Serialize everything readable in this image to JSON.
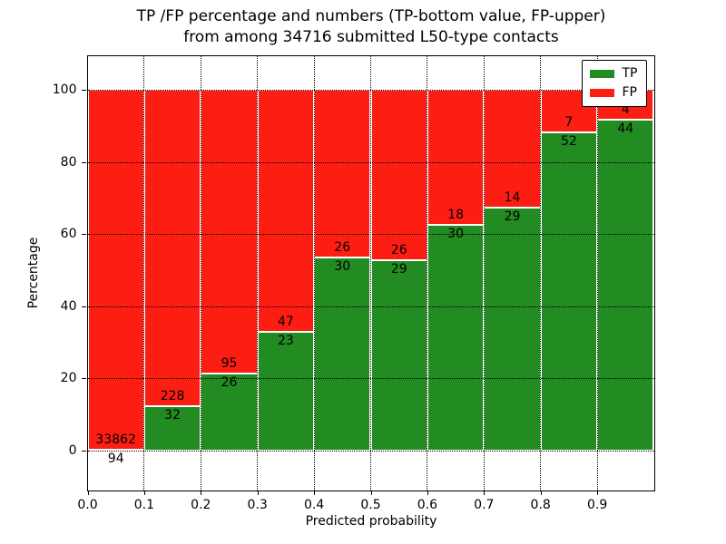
{
  "chart_data": {
    "type": "bar",
    "variant": "stacked-percentage",
    "title": {
      "line1": "TP /FP percentage and numbers (TP-bottom value, FP-upper)",
      "line2": "from among 34716 submitted L50-type contacts"
    },
    "xlabel": "Predicted probability",
    "ylabel": "Percentage",
    "total_submitted_contacts": 34716,
    "x_tick_labels": [
      "0.0",
      "0.1",
      "0.2",
      "0.3",
      "0.4",
      "0.5",
      "0.6",
      "0.7",
      "0.8",
      "0.9"
    ],
    "y_tick_values": [
      0,
      20,
      40,
      60,
      80,
      100
    ],
    "y_tick_labels": [
      "0",
      "20",
      "40",
      "60",
      "80",
      "100"
    ],
    "xlim": [
      0.0,
      1.0
    ],
    "ylim": [
      -10.9,
      109.4
    ],
    "grid": "dotted-black-both-axes",
    "bin_width": 0.1,
    "bins": [
      {
        "x_range": "0.0-0.1",
        "tp": 94,
        "fp": 33862
      },
      {
        "x_range": "0.1-0.2",
        "tp": 32,
        "fp": 228
      },
      {
        "x_range": "0.2-0.3",
        "tp": 26,
        "fp": 95
      },
      {
        "x_range": "0.3-0.4",
        "tp": 23,
        "fp": 47
      },
      {
        "x_range": "0.4-0.5",
        "tp": 30,
        "fp": 26
      },
      {
        "x_range": "0.5-0.6",
        "tp": 29,
        "fp": 26
      },
      {
        "x_range": "0.6-0.7",
        "tp": 30,
        "fp": 18
      },
      {
        "x_range": "0.7-0.8",
        "tp": 29,
        "fp": 14
      },
      {
        "x_range": "0.8-0.9",
        "tp": 52,
        "fp": 7
      },
      {
        "x_range": "0.9-1.0",
        "tp": 44,
        "fp": 4
      }
    ],
    "legend": {
      "position": "upper-right",
      "entries": [
        {
          "label": "TP",
          "color": "#228b22"
        },
        {
          "label": "FP",
          "color": "#fc1d13"
        }
      ]
    },
    "colors": {
      "tp": "#228b22",
      "fp": "#fc1d13",
      "bar_edge": "#ffffff",
      "grid": "#000000",
      "background": "#ffffff"
    }
  }
}
